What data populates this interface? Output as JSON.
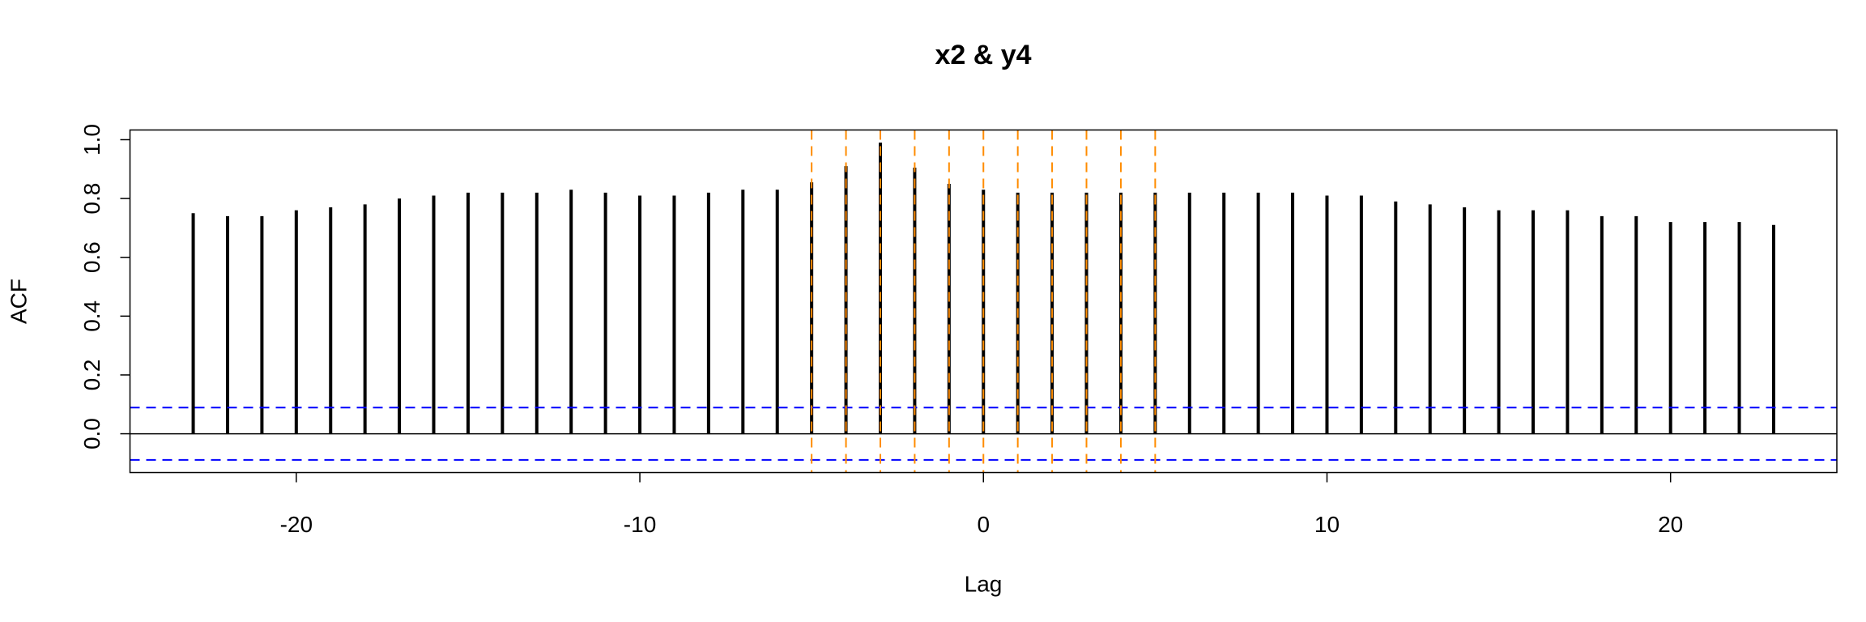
{
  "chart_data": {
    "type": "stem",
    "title": "x2 & y4",
    "xlabel": "Lag",
    "ylabel": "ACF",
    "x": [
      -23,
      -22,
      -21,
      -20,
      -19,
      -18,
      -17,
      -16,
      -15,
      -14,
      -13,
      -12,
      -11,
      -10,
      -9,
      -8,
      -7,
      -6,
      -5,
      -4,
      -3,
      -2,
      -1,
      0,
      1,
      2,
      3,
      4,
      5,
      6,
      7,
      8,
      9,
      10,
      11,
      12,
      13,
      14,
      15,
      16,
      17,
      18,
      19,
      20,
      21,
      22,
      23
    ],
    "values": [
      0.75,
      0.74,
      0.74,
      0.76,
      0.77,
      0.78,
      0.8,
      0.81,
      0.82,
      0.82,
      0.82,
      0.83,
      0.82,
      0.81,
      0.81,
      0.82,
      0.83,
      0.83,
      0.855,
      0.91,
      0.99,
      0.905,
      0.85,
      0.83,
      0.82,
      0.82,
      0.82,
      0.82,
      0.82,
      0.82,
      0.82,
      0.82,
      0.82,
      0.81,
      0.81,
      0.79,
      0.78,
      0.77,
      0.76,
      0.76,
      0.76,
      0.74,
      0.74,
      0.72,
      0.72,
      0.72,
      0.71
    ],
    "color": "#000000",
    "xlim": [
      -24.84,
      24.84
    ],
    "xticks": [
      -20,
      -10,
      0,
      10,
      20
    ],
    "ylim": [
      -0.132,
      1.033
    ],
    "yticks": [
      {
        "value": 0,
        "label": "0.0"
      },
      0.2,
      0.4,
      0.6,
      0.8,
      {
        "value": 1,
        "label": "1.0"
      }
    ],
    "hlines": [
      0.089,
      -0.089
    ],
    "hline_color": "#0000ff",
    "vlines": [
      -5,
      -4,
      -3,
      -2,
      -1,
      0,
      1,
      2,
      3,
      4,
      5
    ],
    "vline_color": "#ff8c00"
  }
}
